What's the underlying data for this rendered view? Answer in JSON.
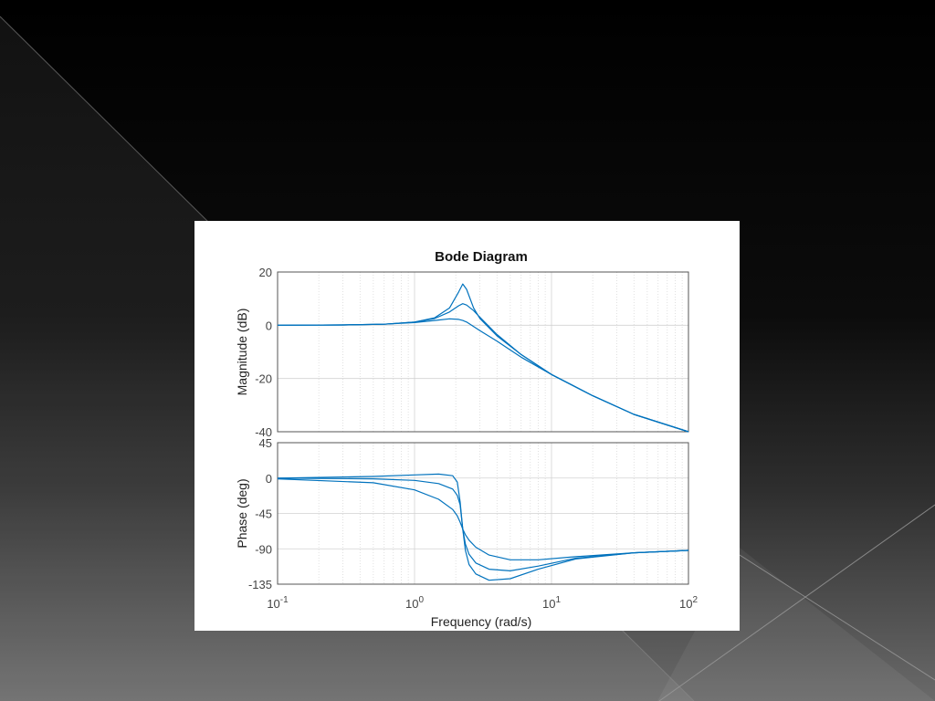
{
  "slide": {
    "background_colors": [
      "#000000",
      "#141414",
      "#5a5a5a",
      "#6e6e6e"
    ],
    "accent_line_color": "#9a9a9a"
  },
  "chart_data": {
    "type": "line",
    "title": "Bode Diagram",
    "xlabel": "Frequency  (rad/s)",
    "xscale": "log",
    "xlim": [
      0.1,
      100
    ],
    "xticks": [
      {
        "base": "10",
        "exp": "-1"
      },
      {
        "base": "10",
        "exp": "0"
      },
      {
        "base": "10",
        "exp": "1"
      },
      {
        "base": "10",
        "exp": "2"
      }
    ],
    "grid": true,
    "line_color": "#0072BD",
    "panels": [
      {
        "name": "magnitude",
        "ylabel": "Magnitude (dB)",
        "ylim": [
          -40,
          20
        ],
        "yticks": [
          "20",
          "0",
          "-20",
          "-40"
        ],
        "series": [
          {
            "x": [
              0.1,
              0.3,
              0.6,
              1.0,
              1.4,
              1.8,
              2.1,
              2.25,
              2.4,
              2.7,
              3.0,
              4.0,
              6.0,
              10,
              20,
              40,
              100
            ],
            "y": [
              0,
              0.1,
              0.4,
              1.2,
              2.8,
              6.5,
              12.5,
              15.5,
              13.5,
              6.5,
              2.5,
              -4.0,
              -11.0,
              -18.5,
              -26.5,
              -33.5,
              -40.0
            ]
          },
          {
            "x": [
              0.1,
              0.3,
              0.6,
              1.0,
              1.4,
              1.8,
              2.1,
              2.25,
              2.4,
              2.7,
              3.0,
              4.0,
              6.0,
              10,
              20,
              40,
              100
            ],
            "y": [
              0,
              0.1,
              0.4,
              1.2,
              2.5,
              5.0,
              7.3,
              8.1,
              7.6,
              5.5,
              3.0,
              -3.5,
              -11.0,
              -18.5,
              -26.5,
              -33.5,
              -40.0
            ]
          },
          {
            "x": [
              0.1,
              0.3,
              0.6,
              1.0,
              1.4,
              1.8,
              2.1,
              2.25,
              2.4,
              2.7,
              3.0,
              4.0,
              6.0,
              10,
              20,
              40,
              100
            ],
            "y": [
              0,
              0.1,
              0.4,
              1.0,
              1.8,
              2.4,
              2.2,
              1.8,
              1.2,
              -0.5,
              -2.0,
              -6.0,
              -12.0,
              -18.5,
              -26.5,
              -33.5,
              -40.0
            ]
          }
        ]
      },
      {
        "name": "phase",
        "ylabel": "Phase (deg)",
        "ylim": [
          -135,
          45
        ],
        "yticks": [
          "45",
          "0",
          "-45",
          "-90",
          "-135"
        ],
        "series": [
          {
            "x": [
              0.1,
              0.5,
              1.0,
              1.5,
              1.9,
              2.05,
              2.15,
              2.25,
              2.35,
              2.5,
              2.8,
              3.5,
              5,
              8,
              15,
              40,
              100
            ],
            "y": [
              0,
              2,
              4,
              5,
              3,
              -5,
              -30,
              -65,
              -92,
              -110,
              -122,
              -130,
              -128,
              -116,
              -103,
              -95,
              -92
            ]
          },
          {
            "x": [
              0.1,
              0.5,
              1.0,
              1.5,
              1.9,
              2.05,
              2.15,
              2.25,
              2.35,
              2.5,
              2.8,
              3.5,
              5,
              8,
              15,
              40,
              100
            ],
            "y": [
              0,
              -1,
              -3,
              -7,
              -14,
              -22,
              -34,
              -65,
              -84,
              -97,
              -108,
              -116,
              -118,
              -112,
              -102,
              -95,
              -92
            ]
          },
          {
            "x": [
              0.1,
              0.5,
              1.0,
              1.5,
              1.9,
              2.05,
              2.15,
              2.25,
              2.35,
              2.5,
              2.8,
              3.5,
              5,
              8,
              15,
              40,
              100
            ],
            "y": [
              -1,
              -6,
              -15,
              -27,
              -40,
              -48,
              -56,
              -65,
              -72,
              -79,
              -88,
              -98,
              -104,
              -104,
              -100,
              -95,
              -92
            ]
          }
        ]
      }
    ]
  }
}
